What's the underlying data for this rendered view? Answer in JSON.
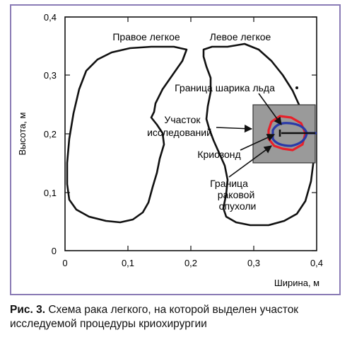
{
  "figure": {
    "y_axis_label": "Высота, м",
    "x_axis_label": "Ширина, м",
    "y_ticks": [
      "0",
      "0,1",
      "0,2",
      "0,3",
      "0,4"
    ],
    "x_ticks": [
      "0",
      "0,1",
      "0,2",
      "0,3",
      "0,4"
    ],
    "labels": {
      "right_lung": "Правое легкое",
      "left_lung": "Левое легкое",
      "ice_ball_boundary": "Граница шарика льда",
      "study_area_line1": "Участок",
      "study_area_line2": "исследований",
      "cryoprobe": "Криозонд",
      "tumor_line1": "Граница",
      "tumor_line2": "раковой",
      "tumor_line3": "опухоли"
    },
    "colors": {
      "study_area_fill": "#9a9a9a",
      "tumor_boundary": "#e8202a",
      "ice_ball_boundary": "#2a3aa8",
      "outline": "#111111",
      "frame": "#8a7bb5"
    }
  },
  "caption": {
    "label": "Рис. 3.",
    "text": " Схема рака легкого, на которой выделен участок исследуемой процедуры криохирургии"
  }
}
